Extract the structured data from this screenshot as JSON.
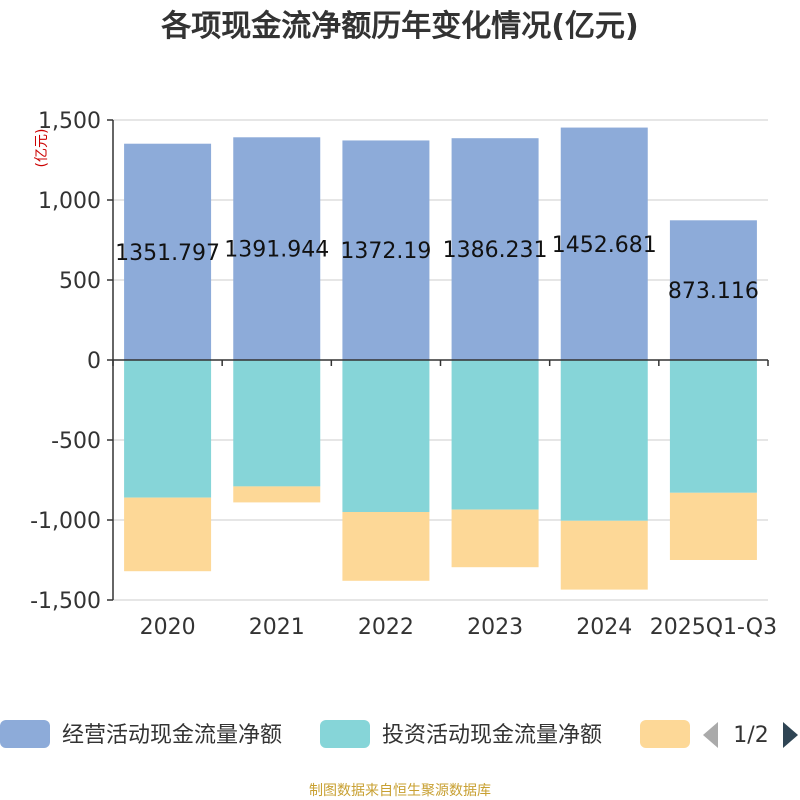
{
  "chart_data": {
    "type": "bar",
    "stacked": true,
    "title": "各项现金流净额历年变化情况(亿元)",
    "unit_label": "(亿元)",
    "categories": [
      "2020",
      "2021",
      "2022",
      "2023",
      "2024",
      "2025Q1-Q3"
    ],
    "ylim": [
      -1500,
      1500
    ],
    "yticks": [
      {
        "value": 1500,
        "label": "1,500"
      },
      {
        "value": 1000,
        "label": "1,000"
      },
      {
        "value": 500,
        "label": "500"
      },
      {
        "value": 0,
        "label": "0"
      },
      {
        "value": -500,
        "label": "-500"
      },
      {
        "value": -1000,
        "label": "-1,000"
      },
      {
        "value": -1500,
        "label": "-1,500"
      }
    ],
    "grid": true,
    "legend_position": "bottom",
    "series": [
      {
        "name": "经营活动现金流量净额",
        "color": "#8dabd9",
        "values": [
          1351.797,
          1391.944,
          1372.19,
          1386.231,
          1452.681,
          873.116
        ],
        "labels": [
          "1351.797",
          "1391.944",
          "1372.19",
          "1386.231",
          "1452.681",
          "873.116"
        ]
      },
      {
        "name": "投资活动现金流量净额",
        "color": "#86d5d8",
        "values": [
          -860,
          -790,
          -950,
          -935,
          -1005,
          -830
        ]
      },
      {
        "name": "",
        "color": "#fdd897",
        "values": [
          -460,
          -100,
          -430,
          -360,
          -430,
          -420
        ]
      }
    ]
  },
  "legend": {
    "pager_text": "1/2",
    "prev_icon": "triangle-left-icon",
    "next_icon": "triangle-right-icon"
  },
  "source_text": "制图数据来自恒生聚源数据库"
}
